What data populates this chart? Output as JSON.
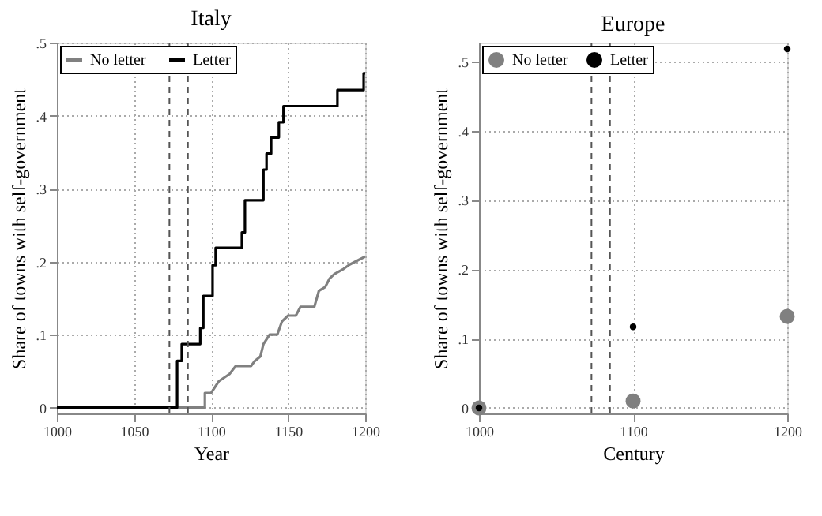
{
  "chart_data": [
    {
      "type": "line",
      "title": "Italy",
      "xlabel": "Year",
      "ylabel": "Share of towns with self-government",
      "xlim": [
        1000,
        1200
      ],
      "xticks": [
        1000,
        1050,
        1100,
        1150,
        1200
      ],
      "ylim": [
        -0.008,
        0.5
      ],
      "yticks": [
        0,
        {
          "value": 0.1,
          "label": ".1"
        },
        {
          "value": 0.2,
          "label": ".2"
        },
        {
          "value": 0.3,
          "label": ".3"
        },
        {
          "value": 0.4,
          "label": ".4"
        },
        {
          "value": 0.5,
          "label": ".5"
        }
      ],
      "grid": true,
      "legend": "top left",
      "line_style": "solid",
      "ref_lines": [
        {
          "axis": "x",
          "value": 1073,
          "label": null,
          "color": "#555555",
          "line_style": "dashed"
        },
        {
          "axis": "x",
          "value": 1085,
          "label": null,
          "color": "#555555",
          "line_style": "dashed"
        }
      ],
      "series": [
        {
          "name": "No letter",
          "color": "#808080",
          "type": "line",
          "x": [
            1000,
            1096,
            1096,
            1100,
            1105,
            1112,
            1116,
            1126,
            1128,
            1132,
            1134,
            1138,
            1143,
            1146,
            1150,
            1155,
            1158,
            1167,
            1170,
            1174,
            1177,
            1180,
            1186,
            1190,
            1200
          ],
          "values": [
            0,
            0,
            0.02,
            0.02,
            0.036,
            0.046,
            0.057,
            0.057,
            0.063,
            0.07,
            0.087,
            0.1,
            0.1,
            0.118,
            0.126,
            0.126,
            0.138,
            0.138,
            0.16,
            0.165,
            0.177,
            0.183,
            0.19,
            0.196,
            0.207
          ]
        },
        {
          "name": "Letter",
          "color": "#000000",
          "type": "step",
          "x": [
            1000,
            1078,
            1081,
            1093,
            1095,
            1101,
            1103,
            1120,
            1122,
            1134,
            1136,
            1139,
            1144,
            1147,
            1182,
            1199,
            1200
          ],
          "values": [
            0,
            0.064,
            0.087,
            0.109,
            0.153,
            0.195,
            0.219,
            0.24,
            0.284,
            0.326,
            0.348,
            0.37,
            0.391,
            0.413,
            0.435,
            0.458,
            0.458
          ]
        }
      ]
    },
    {
      "type": "scatter",
      "title": "Europe",
      "xlabel": "Century",
      "ylabel": "Share of towns with self-government",
      "xlim": [
        1000,
        1200
      ],
      "xticks": [
        1000,
        1100,
        1200
      ],
      "ylim": [
        -0.008,
        0.527
      ],
      "yticks": [
        0,
        {
          "value": 0.1,
          "label": ".1"
        },
        {
          "value": 0.2,
          "label": ".2"
        },
        {
          "value": 0.3,
          "label": ".3"
        },
        {
          "value": 0.4,
          "label": ".4"
        },
        {
          "value": 0.5,
          "label": ".5"
        }
      ],
      "grid": true,
      "legend": "top left",
      "marker": "circle",
      "ref_lines": [
        {
          "axis": "x",
          "value": 1073,
          "label": null,
          "color": "#555555",
          "line_style": "dashed"
        },
        {
          "axis": "x",
          "value": 1085,
          "label": null,
          "color": "#555555",
          "line_style": "dashed"
        }
      ],
      "series": [
        {
          "name": "No letter",
          "color": "#808080",
          "x": [
            1000,
            1100,
            1200
          ],
          "values": [
            0,
            0.01,
            0.132
          ]
        },
        {
          "name": "Letter",
          "color": "#000000",
          "x": [
            1000,
            1100,
            1200
          ],
          "values": [
            0,
            0.117,
            0.518
          ]
        }
      ]
    }
  ]
}
